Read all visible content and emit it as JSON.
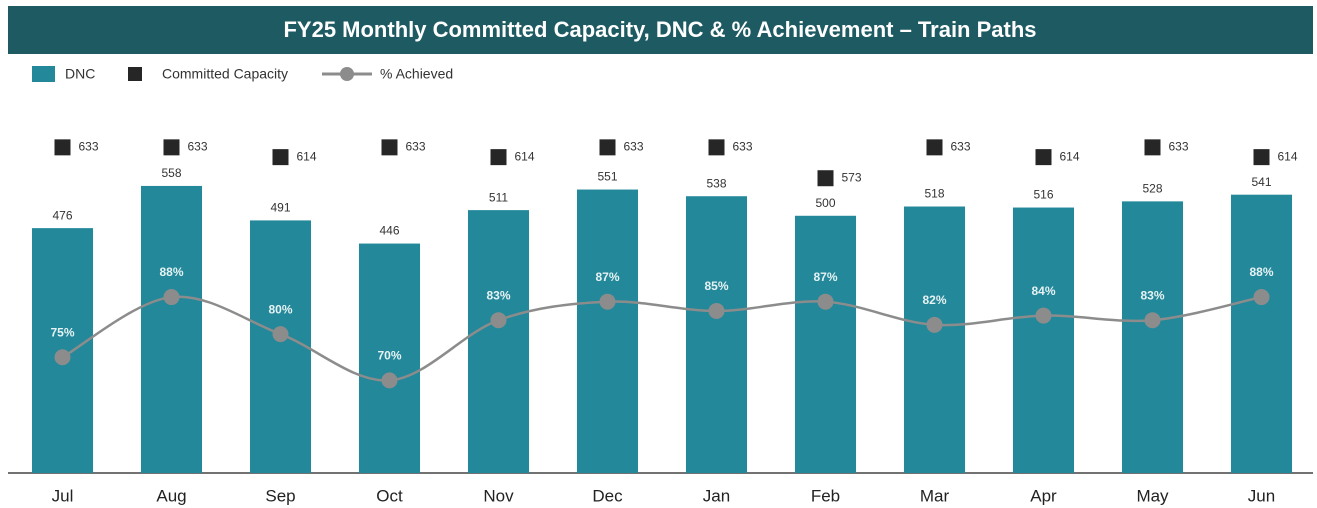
{
  "chart_data": {
    "type": "bar",
    "title": "FY25 Monthly Committed Capacity, DNC & % Achievement – Train Paths",
    "categories": [
      "Jul",
      "Aug",
      "Sep",
      "Oct",
      "Nov",
      "Dec",
      "Jan",
      "Feb",
      "Mar",
      "Apr",
      "May",
      "Jun"
    ],
    "series": [
      {
        "name": "DNC",
        "type": "bar",
        "color": "#238899",
        "values": [
          476,
          558,
          491,
          446,
          511,
          551,
          538,
          500,
          518,
          516,
          528,
          541
        ]
      },
      {
        "name": "Committed Capacity",
        "type": "scatter",
        "color": "#262626",
        "values": [
          633,
          633,
          614,
          633,
          614,
          633,
          633,
          573,
          633,
          614,
          633,
          614
        ]
      },
      {
        "name": "% Achieved",
        "type": "line",
        "color": "#8c8c8c",
        "axis": "y2",
        "values": [
          75,
          88,
          80,
          70,
          83,
          87,
          85,
          87,
          82,
          84,
          83,
          88
        ],
        "value_labels": [
          "75%",
          "88%",
          "80%",
          "70%",
          "83%",
          "87%",
          "85%",
          "87%",
          "82%",
          "84%",
          "83%",
          "88%"
        ]
      }
    ],
    "ylim": [
      0,
      900
    ],
    "y2lim": [
      50,
      150
    ]
  }
}
